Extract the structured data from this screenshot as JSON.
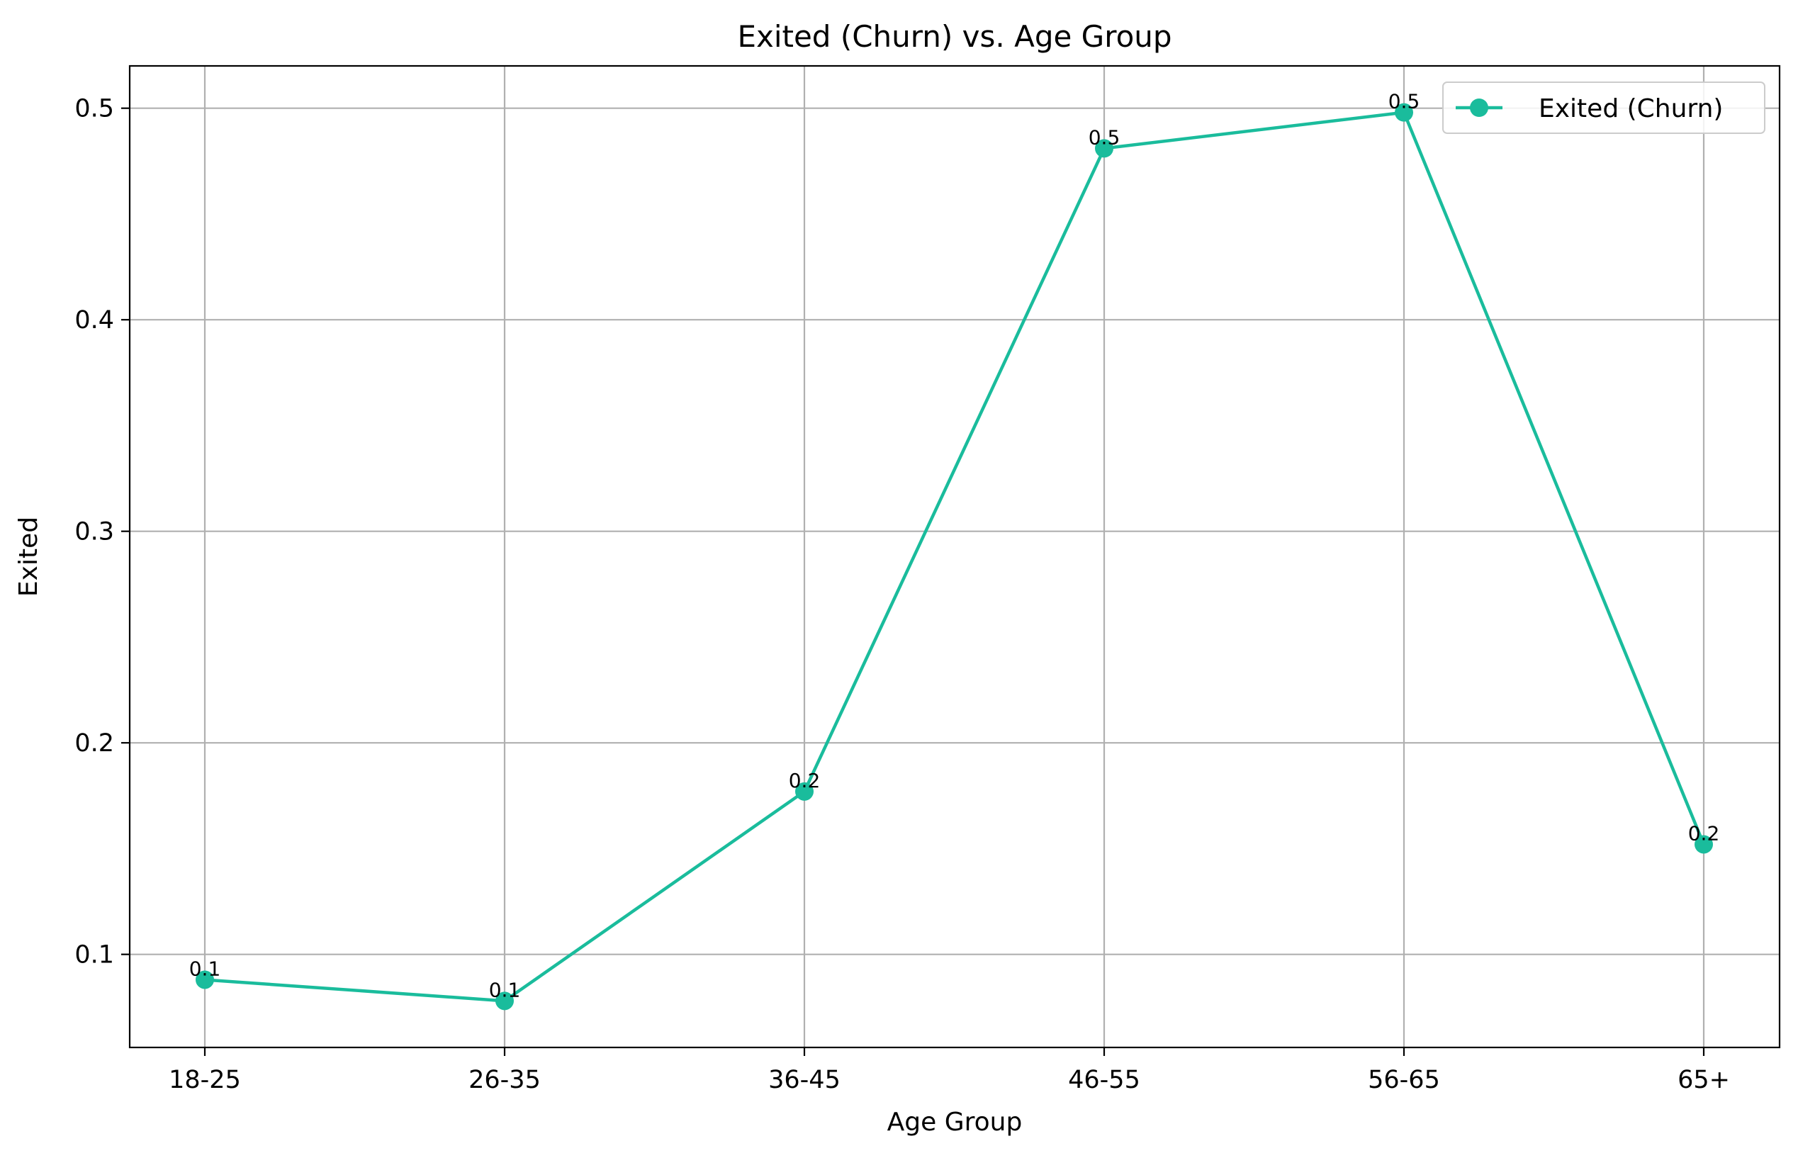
{
  "chart_data": {
    "type": "line",
    "title": "Exited (Churn) vs. Age Group",
    "xlabel": "Age Group",
    "ylabel": "Exited",
    "categories": [
      "18-25",
      "26-35",
      "36-45",
      "46-55",
      "56-65",
      "65+"
    ],
    "series": [
      {
        "name": "Exited (Churn)",
        "values": [
          0.088,
          0.078,
          0.177,
          0.481,
          0.498,
          0.152
        ],
        "labels": [
          "0.1",
          "0.1",
          "0.2",
          "0.5",
          "0.5",
          "0.2"
        ],
        "color": "#1abc9c"
      }
    ],
    "ylim": [
      0.056,
      0.52
    ],
    "yticks": [
      0.1,
      0.2,
      0.3,
      0.4,
      0.5
    ],
    "ytick_labels": [
      "0.1",
      "0.2",
      "0.3",
      "0.4",
      "0.5"
    ],
    "grid": true,
    "legend_position": "top-right"
  }
}
